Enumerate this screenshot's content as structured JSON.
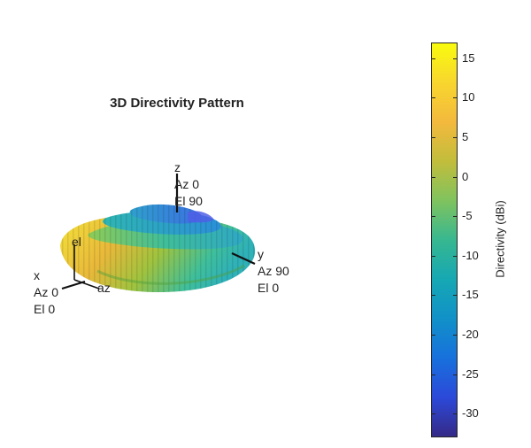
{
  "chart_data": {
    "type": "3d-surface",
    "title": "3D Directivity Pattern",
    "axes": {
      "x": {
        "name": "x",
        "az": "Az 0",
        "el": "El 0"
      },
      "y": {
        "name": "y",
        "az": "Az 90",
        "el": "El 0"
      },
      "z": {
        "name": "z",
        "az": "Az 0",
        "el": "El 90"
      },
      "local": [
        "el",
        "az"
      ]
    },
    "colorbar": {
      "label": "Directivity (dBi)",
      "range": [
        -33,
        17
      ],
      "ticks": [
        15,
        10,
        5,
        0,
        -5,
        -10,
        -15,
        -20,
        -25,
        -30
      ],
      "colormap": "parula"
    },
    "pattern": {
      "main_lobe_peak_dbi": 16,
      "side_lobe_levels_dbi": [
        2,
        -3,
        -8
      ]
    }
  }
}
